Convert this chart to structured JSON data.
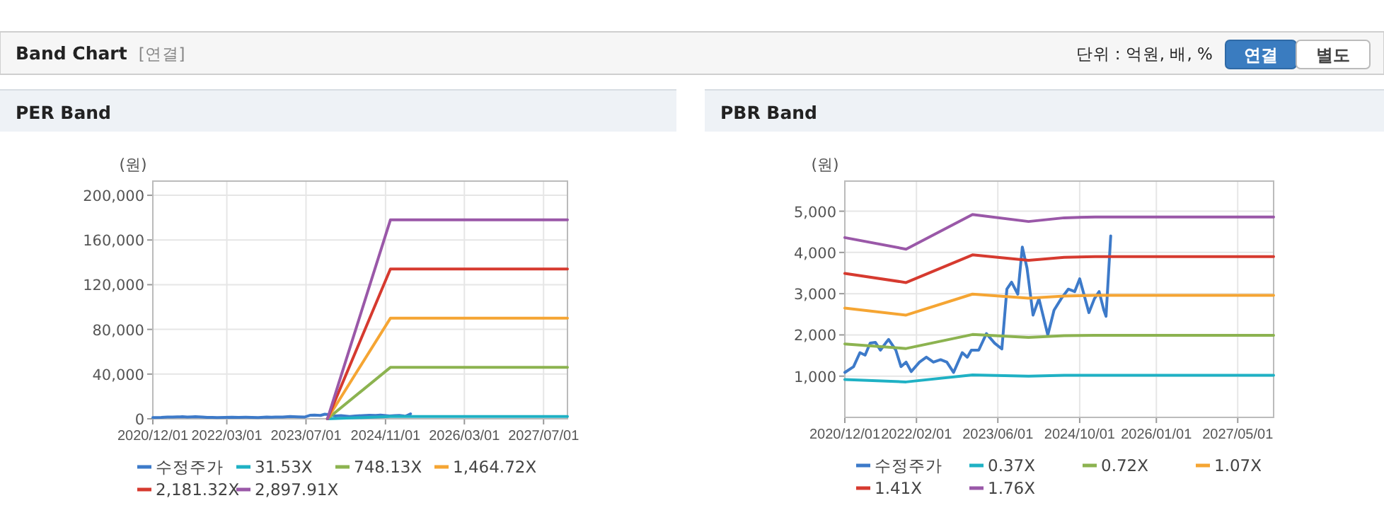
{
  "chart_data": [
    {
      "type": "other",
      "title": "Band Chart",
      "annotations": [
        "[연결]",
        "단위 : 억원, 배, %",
        "연결",
        "별도"
      ]
    },
    {
      "type": "line",
      "title": "PER Band",
      "ylabel": "(원)",
      "grid": true,
      "legend": "bottom",
      "xlim": [
        "2020-12-01",
        "2027-11-25"
      ],
      "ylim": [
        0,
        212700
      ],
      "xticks": [
        {
          "value": "2020-12-01",
          "label": "2020/12/01"
        },
        {
          "value": "2022-03-01",
          "label": "2022/03/01"
        },
        {
          "value": "2023-07-01",
          "label": "2023/07/01"
        },
        {
          "value": "2024-11-01",
          "label": "2024/11/01"
        },
        {
          "value": "2026-03-01",
          "label": "2026/03/01"
        },
        {
          "value": "2027-07-01",
          "label": "2027/07/01"
        }
      ],
      "yticks": [
        0,
        {
          "value": 40000,
          "label": "40,000"
        },
        {
          "value": 80000,
          "label": "80,000"
        },
        {
          "value": 120000,
          "label": "120,000"
        },
        {
          "value": 160000,
          "label": "160,000"
        },
        {
          "value": 200000,
          "label": "200,000"
        }
      ],
      "series": [
        {
          "name": "수정주가",
          "color": "#3d7ac9",
          "x": [
            "2020-12-01",
            "2021-01-22",
            "2021-03-01",
            "2021-04-01",
            "2021-05-01",
            "2021-06-01",
            "2021-07-01",
            "2021-08-01",
            "2021-08-19",
            "2021-10-01",
            "2021-11-01",
            "2021-12-01",
            "2022-01-01",
            "2022-02-19",
            "2022-04-01",
            "2022-05-13",
            "2022-06-25",
            "2022-08-01",
            "2022-09-10",
            "2022-11-01",
            "2022-12-01",
            "2022-12-25",
            "2023-02-07",
            "2023-03-25",
            "2023-05-13",
            "2023-06-25",
            "2023-07-25",
            "2023-08-22",
            "2023-09-28",
            "2023-10-25",
            "2023-11-22",
            "2023-12-28",
            "2024-02-01",
            "2024-03-25",
            "2024-05-01",
            "2024-06-13",
            "2024-07-25",
            "2024-09-01",
            "2024-10-01",
            "2024-11-25",
            "2024-12-28",
            "2025-01-25",
            "2025-02-22",
            "2025-03-07",
            "2025-04-04"
          ],
          "values": [
            1090,
            1230,
            1570,
            1510,
            1800,
            1820,
            1630,
            1800,
            1890,
            1630,
            1230,
            1340,
            1110,
            1340,
            1460,
            1340,
            1400,
            1340,
            1090,
            1570,
            1460,
            1630,
            1630,
            2030,
            1800,
            1660,
            3110,
            3280,
            2990,
            4130,
            3620,
            2480,
            2880,
            2000,
            2600,
            2880,
            3110,
            3050,
            3360,
            2540,
            2880,
            3050,
            2600,
            2450,
            4400
          ]
        },
        {
          "name": "31.53X",
          "color": "#1fb1c4",
          "x": [
            "2023-11-10",
            "2024-12-01",
            "2027-11-25"
          ],
          "values": [
            0,
            2000,
            2000
          ]
        },
        {
          "name": "748.13X",
          "color": "#8cb350",
          "x": [
            "2023-11-10",
            "2024-12-01",
            "2027-11-25"
          ],
          "values": [
            0,
            46000,
            46000
          ]
        },
        {
          "name": "1,464.72X",
          "color": "#f5a533",
          "x": [
            "2023-11-10",
            "2024-12-01",
            "2027-11-25"
          ],
          "values": [
            0,
            90000,
            90000
          ]
        },
        {
          "name": "2,181.32X",
          "color": "#d63a2f",
          "x": [
            "2023-11-10",
            "2024-12-01",
            "2027-11-25"
          ],
          "values": [
            0,
            134000,
            134000
          ]
        },
        {
          "name": "2,897.91X",
          "color": "#9a58a8",
          "x": [
            "2023-11-10",
            "2024-12-01",
            "2027-11-25"
          ],
          "values": [
            0,
            178000,
            178000
          ]
        }
      ]
    },
    {
      "type": "line",
      "title": "PBR Band",
      "ylabel": "(원)",
      "grid": true,
      "legend": "bottom",
      "xlim": [
        "2020-12-01",
        "2027-12-01"
      ],
      "ylim": [
        0,
        5730
      ],
      "xticks": [
        {
          "value": "2020-12-01",
          "label": "2020/12/01"
        },
        {
          "value": "2022-02-01",
          "label": "2022/02/01"
        },
        {
          "value": "2023-06-01",
          "label": "2023/06/01"
        },
        {
          "value": "2024-10-01",
          "label": "2024/10/01"
        },
        {
          "value": "2026-01-01",
          "label": "2026/01/01"
        },
        {
          "value": "2027-05-01",
          "label": "2027/05/01"
        }
      ],
      "yticks": [
        {
          "value": 1000,
          "label": "1,000"
        },
        {
          "value": 2000,
          "label": "2,000"
        },
        {
          "value": 3000,
          "label": "3,000"
        },
        {
          "value": 4000,
          "label": "4,000"
        },
        {
          "value": 5000,
          "label": "5,000"
        }
      ],
      "series": [
        {
          "name": "수정주가",
          "color": "#3d7ac9",
          "x": [
            "2020-12-01",
            "2021-01-22",
            "2021-03-01",
            "2021-04-01",
            "2021-05-01",
            "2021-06-01",
            "2021-07-01",
            "2021-08-01",
            "2021-08-19",
            "2021-10-01",
            "2021-11-01",
            "2021-12-01",
            "2022-01-01",
            "2022-02-19",
            "2022-04-01",
            "2022-05-13",
            "2022-06-25",
            "2022-08-01",
            "2022-09-10",
            "2022-11-01",
            "2022-12-01",
            "2022-12-25",
            "2023-02-07",
            "2023-03-25",
            "2023-05-13",
            "2023-06-25",
            "2023-07-25",
            "2023-08-22",
            "2023-09-28",
            "2023-10-25",
            "2023-11-22",
            "2023-12-28",
            "2024-02-01",
            "2024-03-25",
            "2024-05-01",
            "2024-06-13",
            "2024-07-25",
            "2024-09-01",
            "2024-10-01",
            "2024-11-25",
            "2024-12-28",
            "2025-01-25",
            "2025-02-22",
            "2025-03-07",
            "2025-04-04"
          ],
          "values": [
            1090,
            1230,
            1570,
            1510,
            1800,
            1820,
            1630,
            1800,
            1890,
            1630,
            1230,
            1340,
            1110,
            1340,
            1460,
            1340,
            1400,
            1340,
            1090,
            1570,
            1460,
            1630,
            1630,
            2030,
            1800,
            1660,
            3110,
            3280,
            2990,
            4130,
            3620,
            2480,
            2880,
            2000,
            2600,
            2880,
            3110,
            3050,
            3360,
            2540,
            2880,
            3050,
            2600,
            2450,
            4400
          ]
        },
        {
          "name": "0.37X",
          "color": "#1fb1c4",
          "x": [
            "2020-12-01",
            "2021-12-01",
            "2023-01-01",
            "2023-12-01",
            "2024-07-01",
            "2025-01-01",
            "2027-12-01"
          ],
          "values": [
            920,
            860,
            1030,
            1000,
            1020,
            1020,
            1020
          ]
        },
        {
          "name": "0.72X",
          "color": "#8cb350",
          "x": [
            "2020-12-01",
            "2021-12-01",
            "2023-01-01",
            "2023-12-01",
            "2024-07-01",
            "2025-01-01",
            "2027-12-01"
          ],
          "values": [
            1780,
            1670,
            2010,
            1940,
            1980,
            1990,
            1990
          ]
        },
        {
          "name": "1.07X",
          "color": "#f5a533",
          "x": [
            "2020-12-01",
            "2021-12-01",
            "2023-01-01",
            "2023-12-01",
            "2024-07-01",
            "2025-01-01",
            "2027-12-01"
          ],
          "values": [
            2650,
            2480,
            2990,
            2890,
            2940,
            2960,
            2960
          ]
        },
        {
          "name": "1.41X",
          "color": "#d63a2f",
          "x": [
            "2020-12-01",
            "2021-12-01",
            "2023-01-01",
            "2023-12-01",
            "2024-07-01",
            "2025-01-01",
            "2027-12-01"
          ],
          "values": [
            3490,
            3270,
            3940,
            3810,
            3880,
            3900,
            3900
          ]
        },
        {
          "name": "1.76X",
          "color": "#9a58a8",
          "x": [
            "2020-12-01",
            "2021-12-01",
            "2023-01-01",
            "2023-12-01",
            "2024-07-01",
            "2025-01-01",
            "2027-12-01"
          ],
          "values": [
            4360,
            4080,
            4920,
            4750,
            4840,
            4860,
            4860
          ]
        }
      ]
    }
  ]
}
